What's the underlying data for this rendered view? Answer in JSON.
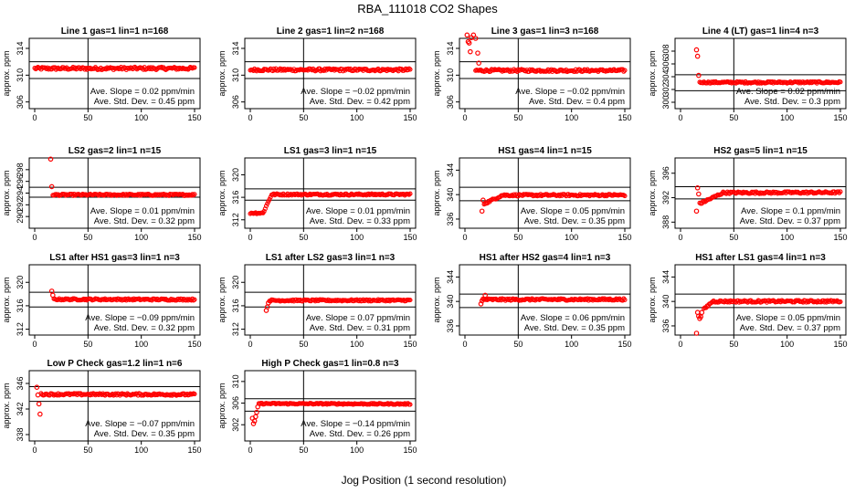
{
  "figure": {
    "title": "RBA_111018  CO2 Shapes",
    "xlabel": "Jog Position (1 second resolution)"
  },
  "colors": {
    "points": "#ff0000",
    "axes": "#000000",
    "background": "#ffffff"
  },
  "chart_data": [
    {
      "type": "scatter",
      "title": "Line 1 gas=1 lin=1 n=168",
      "ylabel": "approx. ppm",
      "xlim": [
        0,
        150
      ],
      "xticks": [
        0,
        50,
        100,
        150
      ],
      "ylim": [
        305,
        315.5
      ],
      "yticks": [
        306,
        310,
        314
      ],
      "ref_lines": [
        309.5,
        312
      ],
      "vline": 50,
      "stats": [
        "Ave. Slope = 0.02  ppm/min",
        "Ave. Std. Dev. = 0.45  ppm"
      ],
      "series": [
        {
          "shape": "flat",
          "start": 0,
          "end": 150,
          "level": 311,
          "slope": 0.02,
          "noise": 0.45,
          "outliers": []
        }
      ]
    },
    {
      "type": "scatter",
      "title": "Line 2 gas=1 lin=2 n=168",
      "ylabel": "approx. ppm",
      "xlim": [
        0,
        150
      ],
      "xticks": [
        0,
        50,
        100,
        150
      ],
      "ylim": [
        305,
        315.5
      ],
      "yticks": [
        306,
        310,
        314
      ],
      "ref_lines": [
        309.5,
        312
      ],
      "vline": 50,
      "stats": [
        "Ave. Slope = −0.02  ppm/min",
        "Ave. Std. Dev. = 0.42  ppm"
      ],
      "series": [
        {
          "shape": "flat",
          "start": 0,
          "end": 150,
          "level": 310.8,
          "slope": -0.02,
          "noise": 0.42,
          "outliers": []
        }
      ]
    },
    {
      "type": "scatter",
      "title": "Line 3 gas=1 lin=3 n=168",
      "ylabel": "approx. ppm",
      "xlim": [
        0,
        150
      ],
      "xticks": [
        0,
        50,
        100,
        150
      ],
      "ylim": [
        305,
        315.5
      ],
      "yticks": [
        306,
        310,
        314
      ],
      "ref_lines": [
        309.5,
        312
      ],
      "vline": 50,
      "stats": [
        "Ave. Slope = −0.02  ppm/min",
        "Ave. Std. Dev. = 0.4  ppm"
      ],
      "series": [
        {
          "shape": "flat",
          "start": 10,
          "end": 150,
          "level": 310.7,
          "slope": -0.02,
          "noise": 0.4,
          "outliers": [
            [
              2,
              316
            ],
            [
              3,
              315
            ],
            [
              4,
              314.8
            ],
            [
              5,
              313.5
            ],
            [
              6,
              315.6
            ],
            [
              8,
              316
            ],
            [
              10,
              315.5
            ],
            [
              12,
              313.3
            ],
            [
              13,
              311.8
            ]
          ]
        }
      ]
    },
    {
      "type": "scatter",
      "title": "Line 4 (LT) gas=1 lin=4 n=3",
      "ylabel": "approx. ppm",
      "xlim": [
        0,
        150
      ],
      "xticks": [
        0,
        50,
        100,
        150
      ],
      "ylim": [
        299,
        310
      ],
      "yticks": [
        300,
        302,
        304,
        306,
        308
      ],
      "ref_lines": [
        301.8,
        304.3
      ],
      "vline": 50,
      "stats": [
        "Ave. Slope = 0.02  ppm/min",
        "Ave. Std. Dev. = 0.3  ppm"
      ],
      "series": [
        {
          "shape": "flat",
          "start": 18,
          "end": 150,
          "level": 303.1,
          "slope": 0.02,
          "noise": 0.3,
          "outliers": [
            [
              15,
              308.2
            ],
            [
              16,
              307.2
            ],
            [
              17,
              304.2
            ]
          ]
        }
      ]
    },
    {
      "type": "scatter",
      "title": "LS2 gas=2 lin=1 n=15",
      "ylabel": "approx. ppm",
      "xlim": [
        0,
        150
      ],
      "xticks": [
        0,
        50,
        100,
        150
      ],
      "ylim": [
        288,
        300
      ],
      "yticks": [
        290,
        292,
        294,
        296,
        298
      ],
      "ref_lines": [
        293.3,
        295
      ],
      "vline": 50,
      "stats": [
        "Ave. Slope = 0.01  ppm/min",
        "Ave. Std. Dev. = 0.32  ppm"
      ],
      "series": [
        {
          "shape": "flat",
          "start": 17,
          "end": 150,
          "level": 293.7,
          "slope": 0.01,
          "noise": 0.32,
          "outliers": [
            [
              15,
              299.8
            ],
            [
              16,
              295.1
            ]
          ]
        }
      ]
    },
    {
      "type": "scatter",
      "title": "LS1 gas=3 lin=1 n=15",
      "ylabel": "approx. ppm",
      "xlim": [
        0,
        150
      ],
      "xticks": [
        0,
        50,
        100,
        150
      ],
      "ylim": [
        310.5,
        323
      ],
      "yticks": [
        312,
        316,
        320
      ],
      "ref_lines": [
        315.5,
        317.5
      ],
      "vline": 50,
      "stats": [
        "Ave. Slope = 0.01  ppm/min",
        "Ave. Std. Dev. = 0.33  ppm"
      ],
      "series": [
        {
          "shape": "step",
          "start": 0,
          "end": 150,
          "low": 313.2,
          "low_end": 12,
          "rise_end": 20,
          "level": 316.5,
          "slope": 0.01,
          "noise": 0.33,
          "outliers": []
        }
      ]
    },
    {
      "type": "scatter",
      "title": "HS1 gas=4 lin=1 n=15",
      "ylabel": "approx. ppm",
      "xlim": [
        0,
        150
      ],
      "xticks": [
        0,
        50,
        100,
        150
      ],
      "ylim": [
        334.5,
        346
      ],
      "yticks": [
        336,
        340,
        344
      ],
      "ref_lines": [
        339,
        341.2
      ],
      "vline": 50,
      "stats": [
        "Ave. Slope = 0.05  ppm/min",
        "Ave. Std. Dev. = 0.35  ppm"
      ],
      "series": [
        {
          "shape": "recover",
          "start": 18,
          "end": 150,
          "dip": 338.5,
          "recover_end": 35,
          "level": 339.9,
          "slope": 0.05,
          "noise": 0.35,
          "outliers": [
            [
              16,
              337.3
            ],
            [
              17,
              339.1
            ]
          ]
        }
      ]
    },
    {
      "type": "scatter",
      "title": "HS2 gas=5 lin=1 n=15",
      "ylabel": "approx. ppm",
      "xlim": [
        0,
        150
      ],
      "xticks": [
        0,
        50,
        100,
        150
      ],
      "ylim": [
        387,
        398.5
      ],
      "yticks": [
        388,
        392,
        396
      ],
      "ref_lines": [
        391.8,
        393.8
      ],
      "vline": 50,
      "stats": [
        "Ave. Slope = 0.1  ppm/min",
        "Ave. Std. Dev. = 0.37  ppm"
      ],
      "series": [
        {
          "shape": "recover",
          "start": 18,
          "end": 150,
          "dip": 391,
          "recover_end": 40,
          "level": 392.8,
          "slope": 0.1,
          "noise": 0.37,
          "outliers": [
            [
              15,
              389.8
            ],
            [
              16,
              393.6
            ],
            [
              17,
              392.6
            ]
          ]
        }
      ]
    },
    {
      "type": "scatter",
      "title": "LS1 after HS1 gas=3 lin=1 n=3",
      "ylabel": "approx. ppm",
      "xlim": [
        0,
        150
      ],
      "xticks": [
        0,
        50,
        100,
        150
      ],
      "ylim": [
        311,
        323
      ],
      "yticks": [
        312,
        316,
        320
      ],
      "ref_lines": [
        315.8,
        318.3
      ],
      "vline": 50,
      "stats": [
        "Ave. Slope = −0.09  ppm/min",
        "Ave. Std. Dev. = 0.32  ppm"
      ],
      "series": [
        {
          "shape": "flat",
          "start": 18,
          "end": 150,
          "level": 317.1,
          "slope": -0.09,
          "noise": 0.32,
          "outliers": [
            [
              16,
              318.5
            ],
            [
              17,
              317.8
            ]
          ]
        }
      ]
    },
    {
      "type": "scatter",
      "title": "LS1 after LS2 gas=3 lin=1 n=3",
      "ylabel": "approx. ppm",
      "xlim": [
        0,
        150
      ],
      "xticks": [
        0,
        50,
        100,
        150
      ],
      "ylim": [
        311,
        323
      ],
      "yticks": [
        312,
        316,
        320
      ],
      "ref_lines": [
        315.8,
        318.3
      ],
      "vline": 50,
      "stats": [
        "Ave. Slope = 0.07  ppm/min",
        "Ave. Std. Dev. = 0.31  ppm"
      ],
      "series": [
        {
          "shape": "flat",
          "start": 18,
          "end": 150,
          "level": 316.9,
          "slope": 0.07,
          "noise": 0.31,
          "outliers": [
            [
              15,
              315.2
            ],
            [
              16,
              315.8
            ],
            [
              17,
              316.5
            ]
          ]
        }
      ]
    },
    {
      "type": "scatter",
      "title": "HS1 after HS2 gas=4 lin=1 n=3",
      "ylabel": "approx. ppm",
      "xlim": [
        0,
        150
      ],
      "xticks": [
        0,
        50,
        100,
        150
      ],
      "ylim": [
        334.5,
        346
      ],
      "yticks": [
        336,
        340,
        344
      ],
      "ref_lines": [
        339,
        341.2
      ],
      "vline": 50,
      "stats": [
        "Ave. Slope = 0.06  ppm/min",
        "Ave. Std. Dev. = 0.35  ppm"
      ],
      "series": [
        {
          "shape": "flat",
          "start": 18,
          "end": 150,
          "level": 340.3,
          "slope": 0.06,
          "noise": 0.35,
          "outliers": [
            [
              15,
              339.6
            ],
            [
              16,
              340.1
            ],
            [
              17,
              340.4
            ],
            [
              19,
              341
            ]
          ]
        }
      ]
    },
    {
      "type": "scatter",
      "title": "HS1 after LS1 gas=4 lin=1 n=3",
      "ylabel": "approx. ppm",
      "xlim": [
        0,
        150
      ],
      "xticks": [
        0,
        50,
        100,
        150
      ],
      "ylim": [
        334.5,
        346
      ],
      "yticks": [
        336,
        340,
        344
      ],
      "ref_lines": [
        339,
        341.2
      ],
      "vline": 50,
      "stats": [
        "Ave. Slope = 0.05  ppm/min",
        "Ave. Std. Dev. = 0.37  ppm"
      ],
      "series": [
        {
          "shape": "recover",
          "start": 22,
          "end": 150,
          "dip": 338.7,
          "recover_end": 30,
          "level": 340,
          "slope": 0.05,
          "noise": 0.37,
          "outliers": [
            [
              15,
              334.8
            ],
            [
              16,
              338.2
            ],
            [
              17,
              337.6
            ],
            [
              18,
              337.2
            ],
            [
              19,
              337.5
            ],
            [
              20,
              338.2
            ]
          ]
        }
      ]
    },
    {
      "type": "scatter",
      "title": "Low P Check gas=1.2 lin=1 n=6",
      "ylabel": "approx. ppm",
      "xlim": [
        0,
        150
      ],
      "xticks": [
        0,
        50,
        100,
        150
      ],
      "ylim": [
        337,
        348
      ],
      "yticks": [
        338,
        342,
        346
      ],
      "ref_lines": [
        343.2,
        345.5
      ],
      "vline": 50,
      "stats": [
        "Ave. Slope = −0.07  ppm/min",
        "Ave. Std. Dev. = 0.35  ppm"
      ],
      "series": [
        {
          "shape": "flat",
          "start": 6,
          "end": 150,
          "level": 344.3,
          "slope": -0.07,
          "noise": 0.35,
          "outliers": [
            [
              2,
              345.4
            ],
            [
              3,
              344.2
            ],
            [
              4,
              342.8
            ],
            [
              5,
              341.2
            ]
          ]
        }
      ]
    },
    {
      "type": "scatter",
      "title": "High P Check gas=1 lin=0.8 n=3",
      "ylabel": "approx. ppm",
      "xlim": [
        0,
        150
      ],
      "xticks": [
        0,
        50,
        100,
        150
      ],
      "ylim": [
        299,
        312
      ],
      "yticks": [
        302,
        306,
        310
      ],
      "ref_lines": [
        304.5,
        306.8
      ],
      "vline": 50,
      "stats": [
        "Ave. Slope = −0.14  ppm/min",
        "Ave. Std. Dev. = 0.26  ppm"
      ],
      "series": [
        {
          "shape": "flat",
          "start": 8,
          "end": 150,
          "level": 305.9,
          "slope": -0.14,
          "noise": 0.26,
          "outliers": [
            [
              2,
              303.2
            ],
            [
              3,
              302.2
            ],
            [
              4,
              302.7
            ],
            [
              5,
              303.5
            ],
            [
              6,
              304.3
            ],
            [
              7,
              305.3
            ]
          ]
        }
      ]
    }
  ]
}
